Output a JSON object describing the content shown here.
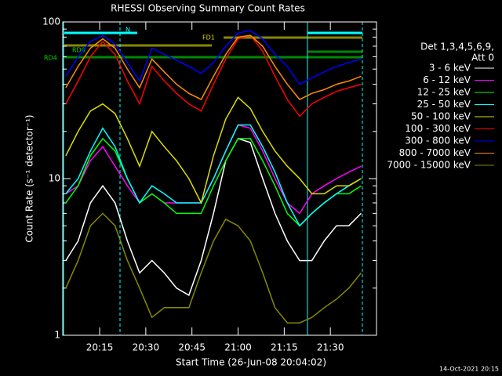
{
  "chart_data": {
    "type": "line",
    "title": "RHESSI Observing Summary Count Rates",
    "xlabel": "Start Time (26-Jun-08 20:04:02)",
    "ylabel": "Count Rate (s⁻¹ detector⁻¹)",
    "legend_title": [
      "Det 1,3,4,5,6,9,",
      "Att 0"
    ],
    "timestamp": "14-Oct-2021 20:15",
    "flags": [
      "FD1",
      "RD4",
      "RD0",
      "N"
    ],
    "log_y": true,
    "ylim": [
      1,
      100
    ],
    "yticks": [
      1,
      10,
      100
    ],
    "xlim": [
      "20:03",
      "21:45"
    ],
    "xticks": [
      "20:15",
      "20:30",
      "20:45",
      "21:00",
      "21:15",
      "21:30"
    ],
    "x": [
      "20:04",
      "20:08",
      "20:12",
      "20:16",
      "20:20",
      "20:24",
      "20:28",
      "20:32",
      "20:36",
      "20:40",
      "20:44",
      "20:48",
      "20:52",
      "20:56",
      "21:00",
      "21:04",
      "21:08",
      "21:12",
      "21:16",
      "21:20",
      "21:24",
      "21:28",
      "21:32",
      "21:36",
      "21:40"
    ],
    "series": [
      {
        "name": "3 - 6 keV",
        "color": "#000000",
        "values": [
          3,
          4,
          7,
          9,
          7,
          4,
          2.5,
          3,
          2.5,
          2,
          1.8,
          3,
          6,
          13,
          18,
          17,
          10,
          6,
          4,
          3,
          3,
          4,
          5,
          5,
          6
        ]
      },
      {
        "name": "6 - 12 keV",
        "color": "#ff00ff",
        "values": [
          8,
          9,
          13,
          16,
          12,
          9,
          7,
          8,
          7,
          7,
          7,
          7,
          10,
          15,
          22,
          21,
          15,
          10,
          7,
          6,
          8,
          9,
          10,
          11,
          12
        ]
      },
      {
        "name": "12 - 25 keV",
        "color": "#00ff00",
        "values": [
          7,
          9,
          14,
          18,
          15,
          10,
          7,
          8,
          7,
          6,
          6,
          6,
          9,
          13,
          18,
          18,
          13,
          9,
          6,
          5,
          6,
          7,
          8,
          8,
          9
        ]
      },
      {
        "name": "25 - 50 keV",
        "color": "#00ffff",
        "values": [
          8,
          10,
          15,
          21,
          16,
          10,
          7,
          9,
          8,
          7,
          7,
          7,
          10,
          15,
          22,
          22,
          16,
          11,
          7,
          5,
          6,
          7,
          8,
          9,
          10
        ]
      },
      {
        "name": "50 - 100 keV",
        "color": "#dddd00",
        "values": [
          14,
          20,
          27,
          30,
          26,
          18,
          12,
          20,
          16,
          13,
          10,
          7,
          14,
          24,
          33,
          28,
          20,
          15,
          12,
          10,
          8,
          8,
          9,
          9,
          10
        ]
      },
      {
        "name": "100 - 300 keV",
        "color": "#ff0000",
        "values": [
          30,
          42,
          60,
          75,
          62,
          42,
          30,
          52,
          42,
          35,
          30,
          27,
          40,
          58,
          78,
          82,
          65,
          45,
          32,
          25,
          30,
          33,
          36,
          38,
          40
        ]
      },
      {
        "name": "300 - 800 keV",
        "color": "#0000ff",
        "values": [
          45,
          60,
          75,
          82,
          72,
          55,
          42,
          68,
          62,
          57,
          52,
          47,
          55,
          70,
          85,
          88,
          78,
          62,
          52,
          40,
          44,
          48,
          52,
          55,
          58
        ]
      },
      {
        "name": "800 - 7000 keV",
        "color": "#ff8c00",
        "values": [
          38,
          52,
          68,
          78,
          68,
          50,
          38,
          58,
          48,
          40,
          35,
          32,
          45,
          62,
          80,
          82,
          70,
          52,
          40,
          32,
          35,
          37,
          40,
          42,
          45
        ]
      },
      {
        "name": "7000 - 15000 keV",
        "color": "#888800",
        "values": [
          2,
          3,
          5,
          6,
          5,
          3,
          2,
          1.3,
          1.5,
          1.5,
          1.5,
          2.5,
          4,
          5.5,
          5,
          4,
          2.5,
          1.5,
          1.2,
          1.2,
          1.3,
          1.5,
          1.7,
          2,
          2.5
        ]
      }
    ]
  }
}
